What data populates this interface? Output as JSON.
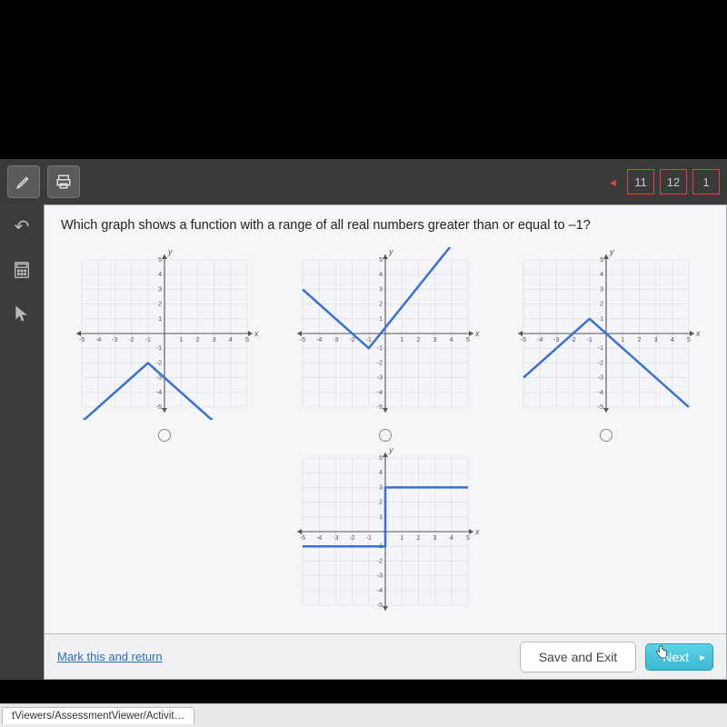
{
  "question": "Which graph shows a function with a range of all real numbers greater than or equal to –1?",
  "nav": {
    "arrow": "◂",
    "nums": [
      "11",
      "12",
      "1"
    ]
  },
  "footer": {
    "mark": "Mark this and return",
    "save": "Save and Exit",
    "next": "Next"
  },
  "status_tab": "tViewers/AssessmentViewer/Activit…",
  "axis": {
    "xmin": -5,
    "xmax": 5,
    "ymin": -5,
    "ymax": 5,
    "xticks": [
      -5,
      -4,
      -3,
      -2,
      -1,
      1,
      2,
      3,
      4,
      5
    ],
    "yticks": [
      -5,
      -4,
      -3,
      -2,
      -1,
      1,
      2,
      3,
      4,
      5
    ],
    "xlabel": "x",
    "ylabel": "y",
    "label_fontsize": 9,
    "grid_color": "#d9dce0",
    "axis_color": "#555",
    "tick_font_color": "#555",
    "tick_fontsize": 7
  },
  "line_style": {
    "color": "#3a6fd8",
    "width": 2.5
  },
  "graphs": [
    {
      "vertex": [
        -1,
        -2
      ],
      "points": [
        [
          -5,
          -6
        ],
        [
          -1,
          -2
        ],
        [
          4,
          -7
        ]
      ],
      "opens": "down-V",
      "radio": true
    },
    {
      "vertex": [
        -1,
        -1
      ],
      "points": [
        [
          -5,
          3
        ],
        [
          -1,
          -1
        ],
        [
          4,
          6
        ]
      ],
      "opens": "up-V",
      "radio": true
    },
    {
      "vertex": [
        -1,
        1
      ],
      "points": [
        [
          -5,
          -3
        ],
        [
          -1,
          1
        ],
        [
          5,
          -5
        ]
      ],
      "opens": "down-V",
      "radio": true
    },
    {
      "vertex": null,
      "points": [
        [
          -5,
          -1
        ],
        [
          0,
          -1
        ],
        [
          0,
          3
        ],
        [
          5,
          3
        ]
      ],
      "opens": "step",
      "radio": false
    }
  ]
}
